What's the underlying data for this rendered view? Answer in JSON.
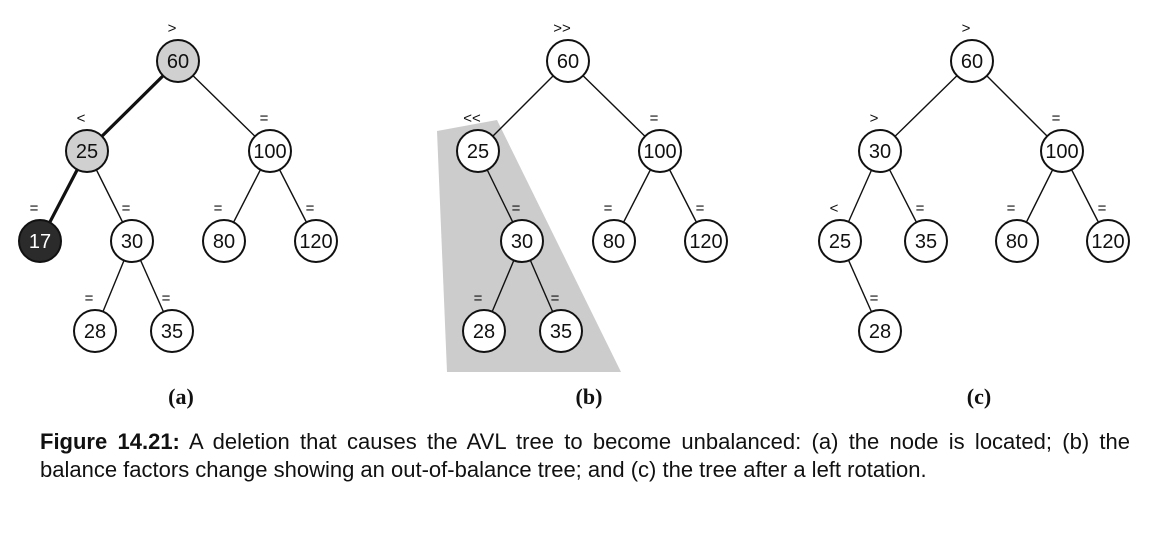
{
  "colors": {
    "highlight": "#d0d0d0",
    "deleted": "#2b2b2b",
    "shade": "#cccccc",
    "edge": "#111111"
  },
  "panels": [
    {
      "label": "(a)",
      "nodes": [
        {
          "id": "a60",
          "value": "60",
          "bf": ">",
          "state": "highlight"
        },
        {
          "id": "a25",
          "value": "25",
          "bf": "<",
          "state": "highlight"
        },
        {
          "id": "a100",
          "value": "100",
          "bf": "=",
          "state": "normal"
        },
        {
          "id": "a17",
          "value": "17",
          "bf": "=",
          "state": "deleted"
        },
        {
          "id": "a30",
          "value": "30",
          "bf": "=",
          "state": "normal"
        },
        {
          "id": "a80",
          "value": "80",
          "bf": "=",
          "state": "normal"
        },
        {
          "id": "a120",
          "value": "120",
          "bf": "=",
          "state": "normal"
        },
        {
          "id": "a28",
          "value": "28",
          "bf": "=",
          "state": "normal"
        },
        {
          "id": "a35",
          "value": "35",
          "bf": "=",
          "state": "normal"
        }
      ],
      "edges": [
        [
          "a60",
          "a25"
        ],
        [
          "a60",
          "a100"
        ],
        [
          "a25",
          "a17"
        ],
        [
          "a25",
          "a30"
        ],
        [
          "a100",
          "a80"
        ],
        [
          "a100",
          "a120"
        ],
        [
          "a30",
          "a28"
        ],
        [
          "a30",
          "a35"
        ]
      ],
      "path_edges": [
        [
          "a60",
          "a25"
        ],
        [
          "a25",
          "a17"
        ]
      ]
    },
    {
      "label": "(b)",
      "nodes": [
        {
          "id": "b60",
          "value": "60",
          "bf": ">>",
          "state": "normal"
        },
        {
          "id": "b25",
          "value": "25",
          "bf": "<<",
          "state": "normal"
        },
        {
          "id": "b100",
          "value": "100",
          "bf": "=",
          "state": "normal"
        },
        {
          "id": "b30",
          "value": "30",
          "bf": "=",
          "state": "normal"
        },
        {
          "id": "b80",
          "value": "80",
          "bf": "=",
          "state": "normal"
        },
        {
          "id": "b120",
          "value": "120",
          "bf": "=",
          "state": "normal"
        },
        {
          "id": "b28",
          "value": "28",
          "bf": "=",
          "state": "normal"
        },
        {
          "id": "b35",
          "value": "35",
          "bf": "=",
          "state": "normal"
        }
      ],
      "edges": [
        [
          "b60",
          "b25"
        ],
        [
          "b60",
          "b100"
        ],
        [
          "b25",
          "b30"
        ],
        [
          "b100",
          "b80"
        ],
        [
          "b100",
          "b120"
        ],
        [
          "b30",
          "b28"
        ],
        [
          "b30",
          "b35"
        ]
      ],
      "path_edges": []
    },
    {
      "label": "(c)",
      "nodes": [
        {
          "id": "c60",
          "value": "60",
          "bf": ">",
          "state": "normal"
        },
        {
          "id": "c30",
          "value": "30",
          "bf": ">",
          "state": "normal"
        },
        {
          "id": "c100",
          "value": "100",
          "bf": "=",
          "state": "normal"
        },
        {
          "id": "c25",
          "value": "25",
          "bf": "<",
          "state": "normal"
        },
        {
          "id": "c35",
          "value": "35",
          "bf": "=",
          "state": "normal"
        },
        {
          "id": "c80",
          "value": "80",
          "bf": "=",
          "state": "normal"
        },
        {
          "id": "c120",
          "value": "120",
          "bf": "=",
          "state": "normal"
        },
        {
          "id": "c28",
          "value": "28",
          "bf": "=",
          "state": "normal"
        }
      ],
      "edges": [
        [
          "c60",
          "c30"
        ],
        [
          "c60",
          "c100"
        ],
        [
          "c30",
          "c25"
        ],
        [
          "c30",
          "c35"
        ],
        [
          "c100",
          "c80"
        ],
        [
          "c100",
          "c120"
        ],
        [
          "c25",
          "c28"
        ]
      ],
      "path_edges": []
    }
  ],
  "caption": {
    "label": "Figure 14.21:",
    "text": " A deletion that causes the AVL tree to become unbalanced: (a) the node is located; (b) the balance factors change showing an out-of-balance tree; and (c) the tree after a left rotation."
  }
}
